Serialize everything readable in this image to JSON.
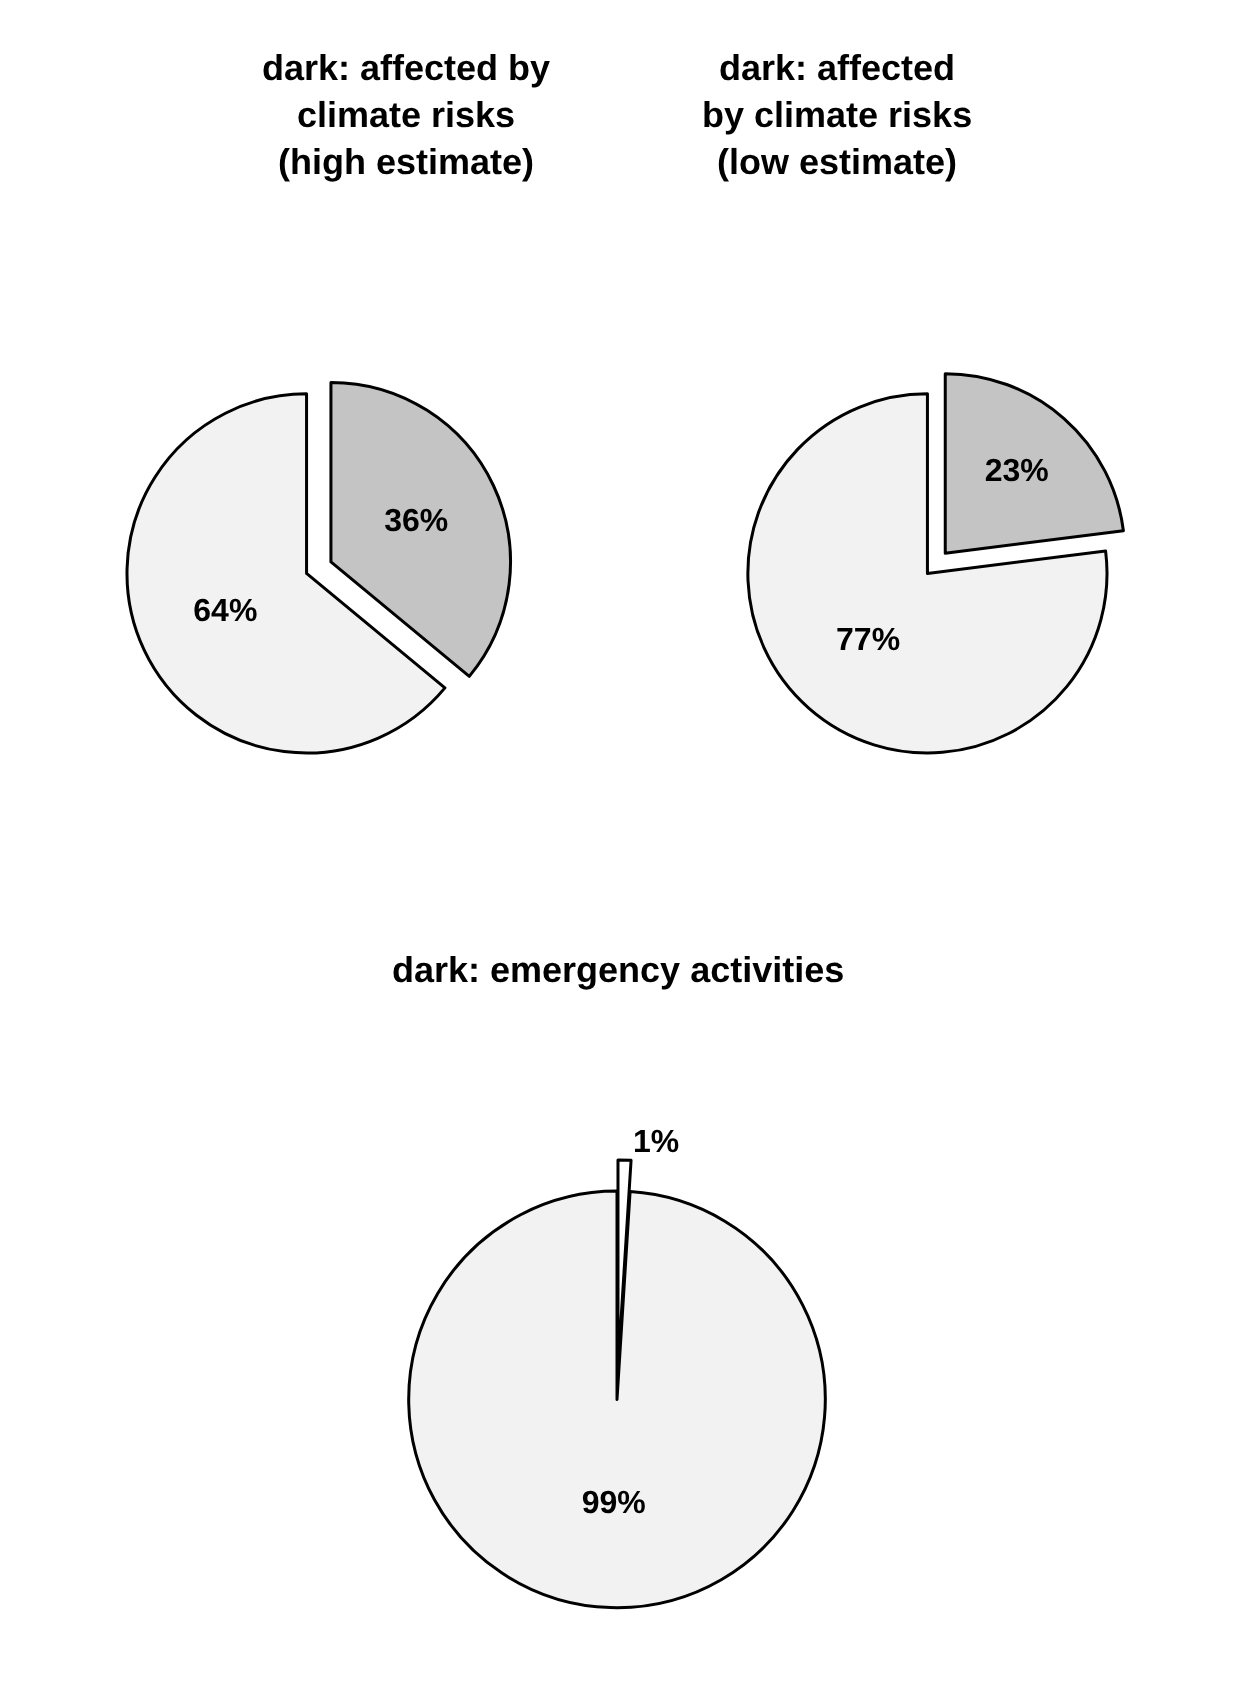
{
  "chart_data": [
    {
      "type": "pie",
      "title": "dark: affected by climate risks (high estimate)",
      "categories": [
        null,
        null
      ],
      "values": [
        36,
        64
      ],
      "colors": [
        "#c4c4c4",
        "#f2f2f2"
      ],
      "value_labels": [
        "36%",
        "64%"
      ]
    },
    {
      "type": "pie",
      "title": "dark: affected by climate risks (low estimate)",
      "categories": [
        null,
        null
      ],
      "values": [
        23,
        77
      ],
      "colors": [
        "#c4c4c4",
        "#f2f2f2"
      ],
      "value_labels": [
        "23%",
        "77%"
      ]
    },
    {
      "type": "pie",
      "title": "dark: emergency activities",
      "categories": [
        null,
        null
      ],
      "values": [
        1,
        99
      ],
      "colors": [
        "#ffffff",
        "#f2f2f2"
      ],
      "value_labels": [
        "1%",
        "99%"
      ]
    }
  ]
}
